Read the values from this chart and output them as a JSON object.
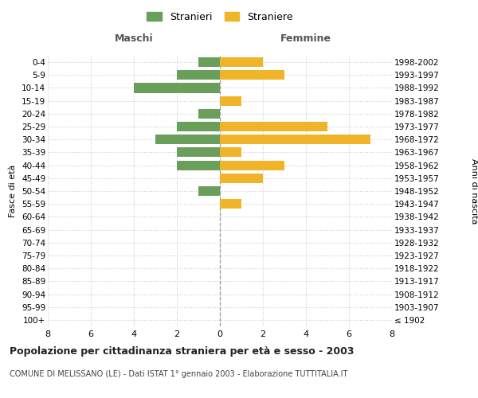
{
  "age_groups": [
    "100+",
    "95-99",
    "90-94",
    "85-89",
    "80-84",
    "75-79",
    "70-74",
    "65-69",
    "60-64",
    "55-59",
    "50-54",
    "45-49",
    "40-44",
    "35-39",
    "30-34",
    "25-29",
    "20-24",
    "15-19",
    "10-14",
    "5-9",
    "0-4"
  ],
  "birth_years": [
    "≤ 1902",
    "1903-1907",
    "1908-1912",
    "1913-1917",
    "1918-1922",
    "1923-1927",
    "1928-1932",
    "1933-1937",
    "1938-1942",
    "1943-1947",
    "1948-1952",
    "1953-1957",
    "1958-1962",
    "1963-1967",
    "1968-1972",
    "1973-1977",
    "1978-1982",
    "1983-1987",
    "1988-1992",
    "1993-1997",
    "1998-2002"
  ],
  "males": [
    0,
    0,
    0,
    0,
    0,
    0,
    0,
    0,
    0,
    0,
    1,
    0,
    2,
    2,
    3,
    2,
    1,
    0,
    4,
    2,
    1
  ],
  "females": [
    0,
    0,
    0,
    0,
    0,
    0,
    0,
    0,
    0,
    1,
    0,
    2,
    3,
    1,
    7,
    5,
    0,
    1,
    0,
    3,
    2
  ],
  "male_color": "#6a9e5b",
  "female_color": "#f0b429",
  "title": "Popolazione per cittadinanza straniera per età e sesso - 2003",
  "subtitle": "COMUNE DI MELISSANO (LE) - Dati ISTAT 1° gennaio 2003 - Elaborazione TUTTITALIA.IT",
  "xlabel_left": "Maschi",
  "xlabel_right": "Femmine",
  "ylabel_left": "Fasce di età",
  "ylabel_right": "Anni di nascita",
  "legend_male": "Stranieri",
  "legend_female": "Straniere",
  "xlim": 8,
  "background_color": "#ffffff",
  "grid_color": "#cccccc"
}
